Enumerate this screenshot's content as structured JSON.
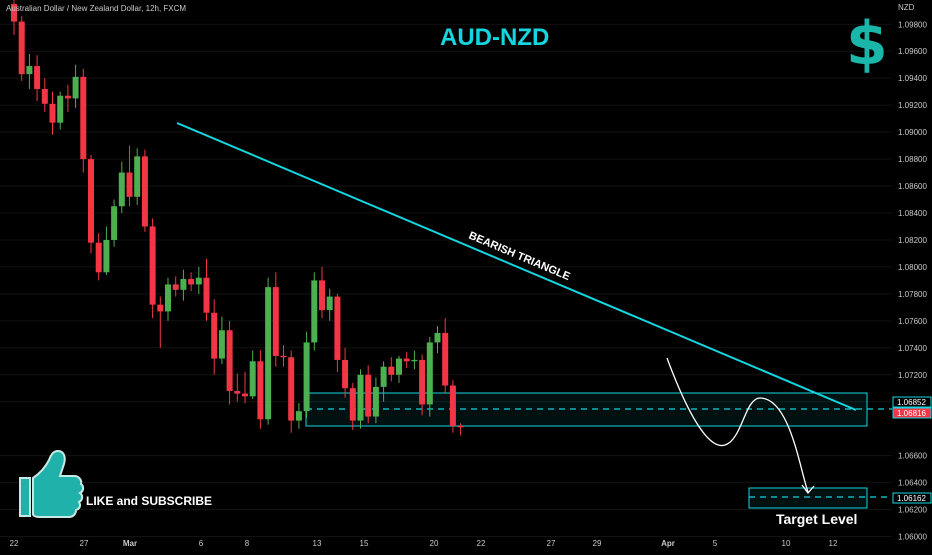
{
  "header": {
    "symbol_info": "Australian Dollar / New Zealand Dollar, 12h, FXCM"
  },
  "title": "AUD-NZD",
  "currency_icon": "dollar-sign-icon",
  "like_text": "LIKE and SUBSCRIBE",
  "like_icon": "thumbs-up-icon",
  "colors": {
    "up": "#4caf50",
    "down": "#f23645",
    "accent": "#13d6e0",
    "background": "#000000"
  },
  "chart_data": {
    "type": "candlestick",
    "ylabel": "NZD",
    "ylim": [
      1.059,
      1.0998
    ],
    "y_ticks": [
      "1.09800",
      "1.09600",
      "1.09400",
      "1.09200",
      "1.09000",
      "1.08800",
      "1.08600",
      "1.08400",
      "1.08200",
      "1.08000",
      "1.07800",
      "1.07600",
      "1.07400",
      "1.07200",
      "1.07000",
      "1.06600",
      "1.06400",
      "1.06200",
      "1.06000"
    ],
    "x_ticks": [
      "22",
      "27",
      "Mar",
      "6",
      "8",
      "13",
      "15",
      "20",
      "22",
      "27",
      "29",
      "Apr",
      "5",
      "10",
      "12"
    ],
    "price_labels": [
      {
        "text": "1.06852",
        "value": 1.06852,
        "style": "box"
      },
      {
        "text": "1.06816",
        "value": 1.06816,
        "style": "filled"
      },
      {
        "text": "1.06162",
        "value": 1.06162,
        "style": "box"
      }
    ],
    "candles": [
      {
        "o": 1.0995,
        "h": 1.0998,
        "l": 1.0972,
        "c": 1.0982
      },
      {
        "o": 1.0982,
        "h": 1.0986,
        "l": 1.0938,
        "c": 1.0943
      },
      {
        "o": 1.0943,
        "h": 1.0958,
        "l": 1.0932,
        "c": 1.0949
      },
      {
        "o": 1.0949,
        "h": 1.0957,
        "l": 1.0923,
        "c": 1.0932
      },
      {
        "o": 1.0932,
        "h": 1.094,
        "l": 1.0915,
        "c": 1.0921
      },
      {
        "o": 1.0921,
        "h": 1.093,
        "l": 1.0898,
        "c": 1.0907
      },
      {
        "o": 1.0907,
        "h": 1.093,
        "l": 1.0902,
        "c": 1.0927
      },
      {
        "o": 1.0927,
        "h": 1.0935,
        "l": 1.0915,
        "c": 1.0925
      },
      {
        "o": 1.0925,
        "h": 1.095,
        "l": 1.0918,
        "c": 1.0941
      },
      {
        "o": 1.0941,
        "h": 1.0947,
        "l": 1.087,
        "c": 1.088
      },
      {
        "o": 1.088,
        "h": 1.0883,
        "l": 1.081,
        "c": 1.0818
      },
      {
        "o": 1.0818,
        "h": 1.0825,
        "l": 1.079,
        "c": 1.0796
      },
      {
        "o": 1.0796,
        "h": 1.083,
        "l": 1.0794,
        "c": 1.082
      },
      {
        "o": 1.082,
        "h": 1.085,
        "l": 1.0815,
        "c": 1.0845
      },
      {
        "o": 1.0845,
        "h": 1.0878,
        "l": 1.084,
        "c": 1.087
      },
      {
        "o": 1.087,
        "h": 1.089,
        "l": 1.0845,
        "c": 1.0852
      },
      {
        "o": 1.0852,
        "h": 1.0888,
        "l": 1.0846,
        "c": 1.0882
      },
      {
        "o": 1.0882,
        "h": 1.0887,
        "l": 1.0826,
        "c": 1.083
      },
      {
        "o": 1.083,
        "h": 1.0836,
        "l": 1.0762,
        "c": 1.0772
      },
      {
        "o": 1.0772,
        "h": 1.0778,
        "l": 1.074,
        "c": 1.0767
      },
      {
        "o": 1.0767,
        "h": 1.0792,
        "l": 1.076,
        "c": 1.0787
      },
      {
        "o": 1.0787,
        "h": 1.0793,
        "l": 1.0778,
        "c": 1.0783
      },
      {
        "o": 1.0783,
        "h": 1.0798,
        "l": 1.0775,
        "c": 1.0791
      },
      {
        "o": 1.0791,
        "h": 1.0796,
        "l": 1.0782,
        "c": 1.0787
      },
      {
        "o": 1.0787,
        "h": 1.08,
        "l": 1.078,
        "c": 1.0792
      },
      {
        "o": 1.0792,
        "h": 1.0806,
        "l": 1.076,
        "c": 1.0766
      },
      {
        "o": 1.0766,
        "h": 1.0776,
        "l": 1.072,
        "c": 1.0732
      },
      {
        "o": 1.0732,
        "h": 1.0763,
        "l": 1.0728,
        "c": 1.0753
      },
      {
        "o": 1.0753,
        "h": 1.076,
        "l": 1.0698,
        "c": 1.0708
      },
      {
        "o": 1.0708,
        "h": 1.0721,
        "l": 1.07,
        "c": 1.0706
      },
      {
        "o": 1.0706,
        "h": 1.0722,
        "l": 1.0699,
        "c": 1.0704
      },
      {
        "o": 1.0704,
        "h": 1.0738,
        "l": 1.0702,
        "c": 1.073
      },
      {
        "o": 1.073,
        "h": 1.0738,
        "l": 1.068,
        "c": 1.0687
      },
      {
        "o": 1.0687,
        "h": 1.0792,
        "l": 1.0683,
        "c": 1.0785
      },
      {
        "o": 1.0785,
        "h": 1.0796,
        "l": 1.0726,
        "c": 1.0734
      },
      {
        "o": 1.0734,
        "h": 1.0742,
        "l": 1.0726,
        "c": 1.0733
      },
      {
        "o": 1.0733,
        "h": 1.0738,
        "l": 1.0677,
        "c": 1.0686
      },
      {
        "o": 1.0686,
        "h": 1.0699,
        "l": 1.068,
        "c": 1.0693
      },
      {
        "o": 1.0693,
        "h": 1.0752,
        "l": 1.0688,
        "c": 1.0744
      },
      {
        "o": 1.0744,
        "h": 1.0796,
        "l": 1.0738,
        "c": 1.079
      },
      {
        "o": 1.079,
        "h": 1.08,
        "l": 1.0762,
        "c": 1.0768
      },
      {
        "o": 1.0768,
        "h": 1.0784,
        "l": 1.076,
        "c": 1.0778
      },
      {
        "o": 1.0778,
        "h": 1.078,
        "l": 1.0722,
        "c": 1.0731
      },
      {
        "o": 1.0731,
        "h": 1.074,
        "l": 1.0703,
        "c": 1.071
      },
      {
        "o": 1.071,
        "h": 1.0714,
        "l": 1.0679,
        "c": 1.0686
      },
      {
        "o": 1.0686,
        "h": 1.0724,
        "l": 1.068,
        "c": 1.072
      },
      {
        "o": 1.072,
        "h": 1.0727,
        "l": 1.0684,
        "c": 1.0689
      },
      {
        "o": 1.0689,
        "h": 1.0718,
        "l": 1.0684,
        "c": 1.0711
      },
      {
        "o": 1.0711,
        "h": 1.073,
        "l": 1.07,
        "c": 1.0726
      },
      {
        "o": 1.0726,
        "h": 1.0733,
        "l": 1.0715,
        "c": 1.072
      },
      {
        "o": 1.072,
        "h": 1.0734,
        "l": 1.0714,
        "c": 1.0732
      },
      {
        "o": 1.0732,
        "h": 1.0737,
        "l": 1.0725,
        "c": 1.073
      },
      {
        "o": 1.073,
        "h": 1.0738,
        "l": 1.0724,
        "c": 1.0731
      },
      {
        "o": 1.0731,
        "h": 1.0735,
        "l": 1.069,
        "c": 1.0698
      },
      {
        "o": 1.0698,
        "h": 1.0748,
        "l": 1.0689,
        "c": 1.0744
      },
      {
        "o": 1.0744,
        "h": 1.0756,
        "l": 1.0736,
        "c": 1.0751
      },
      {
        "o": 1.0751,
        "h": 1.0762,
        "l": 1.0706,
        "c": 1.0712
      },
      {
        "o": 1.0712,
        "h": 1.0716,
        "l": 1.0677,
        "c": 1.0682
      },
      {
        "o": 1.0682,
        "h": 1.0684,
        "l": 1.0675,
        "c": 1.0681
      }
    ],
    "annotations": [
      {
        "text": "BEARISH TRIANGLE",
        "type": "trendline"
      },
      {
        "text": "Target Level",
        "type": "zone"
      }
    ]
  }
}
